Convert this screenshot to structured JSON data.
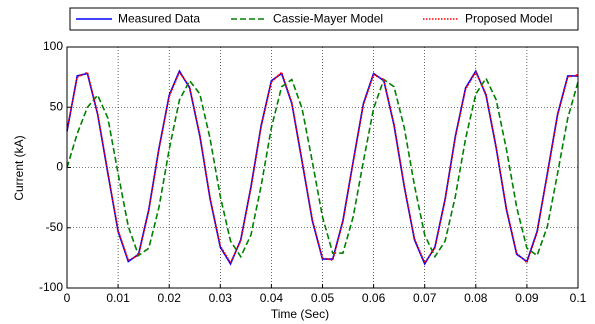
{
  "chart_data": {
    "type": "line",
    "xlabel": "Time (Sec)",
    "ylabel": "Current (kA)",
    "x": [
      0,
      0.002,
      0.004,
      0.006,
      0.008,
      0.01,
      0.012,
      0.014,
      0.016,
      0.018,
      0.02,
      0.022,
      0.024,
      0.026,
      0.028,
      0.03,
      0.032,
      0.034,
      0.036,
      0.038,
      0.04,
      0.042,
      0.044,
      0.046,
      0.048,
      0.05,
      0.052,
      0.054,
      0.056,
      0.058,
      0.06,
      0.062,
      0.064,
      0.066,
      0.068,
      0.07,
      0.072,
      0.074,
      0.076,
      0.078,
      0.08,
      0.082,
      0.084,
      0.086,
      0.088,
      0.09,
      0.092,
      0.094,
      0.096,
      0.098,
      0.1
    ],
    "series": [
      {
        "name": "Measured Data",
        "color": "#0000ff",
        "dash": "solid",
        "values": [
          30,
          76,
          78,
          44,
          -5,
          -53,
          -78,
          -72,
          -35,
          16,
          60,
          80,
          66,
          26,
          -26,
          -66,
          -80,
          -60,
          -16,
          35,
          72,
          78,
          53,
          5,
          -44,
          -76,
          -76,
          -44,
          5,
          53,
          78,
          72,
          35,
          -16,
          -60,
          -80,
          -66,
          -26,
          26,
          66,
          80,
          60,
          16,
          -35,
          -72,
          -78,
          -53,
          -5,
          44,
          76,
          76
        ]
      },
      {
        "name": "Cassie-Mayer Model",
        "color": "#008000",
        "dash": "dashed",
        "values": [
          0,
          28,
          50,
          60,
          41,
          -5,
          -49,
          -73,
          -67,
          -33,
          15,
          56,
          72,
          61,
          24,
          -24,
          -61,
          -74,
          -56,
          -15,
          33,
          67,
          73,
          49,
          5,
          -41,
          -71,
          -71,
          -41,
          5,
          49,
          73,
          67,
          33,
          -15,
          -56,
          -74,
          -61,
          -24,
          24,
          61,
          74,
          56,
          15,
          -33,
          -67,
          -73,
          -49,
          -5,
          41,
          71
        ]
      },
      {
        "name": "Proposed Model",
        "color": "#ff0000",
        "dash": "dotted",
        "values": [
          31,
          75,
          79,
          45,
          -4,
          -52,
          -77,
          -73,
          -36,
          15,
          59,
          79,
          67,
          27,
          -25,
          -65,
          -79,
          -61,
          -17,
          34,
          71,
          79,
          54,
          6,
          -43,
          -75,
          -77,
          -45,
          4,
          52,
          77,
          73,
          36,
          -15,
          -59,
          -79,
          -67,
          -27,
          25,
          65,
          79,
          61,
          17,
          -34,
          -71,
          -79,
          -54,
          -6,
          43,
          75,
          77
        ]
      }
    ],
    "xlim": [
      0,
      0.1
    ],
    "xticks": [
      0,
      0.01,
      0.02,
      0.03,
      0.04,
      0.05,
      0.06,
      0.07,
      0.08,
      0.09,
      0.1
    ],
    "ylim": [
      -100,
      100
    ],
    "yticks": [
      -100,
      -50,
      0,
      50,
      100
    ],
    "grid": true,
    "legend": "top"
  }
}
